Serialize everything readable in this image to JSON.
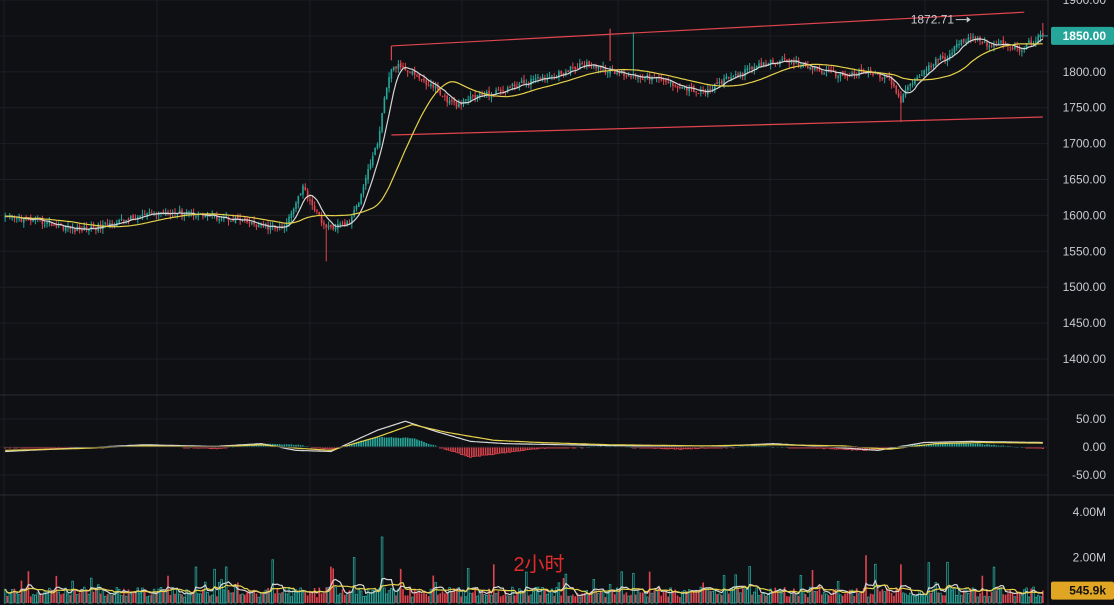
{
  "chart_data": [
    {
      "type": "candlestick",
      "panel": "price",
      "title": "",
      "ylim": [
        1350,
        1900
      ],
      "y_ticks": [
        "1900.00",
        "1850.00",
        "1800.00",
        "1750.00",
        "1700.00",
        "1650.00",
        "1600.00",
        "1550.00",
        "1500.00",
        "1450.00",
        "1400.00"
      ],
      "y_tick_values": [
        1900,
        1850,
        1800,
        1750,
        1700,
        1650,
        1600,
        1550,
        1500,
        1450,
        1400
      ],
      "last_price_tag": "1850.00",
      "last_price": 1850,
      "high_marker_label": "1872.71",
      "high_marker_value": 1872.71,
      "up_color": "#26a69a",
      "down_color": "#e0454f",
      "ma_colors": [
        "#d7d7d7",
        "#e6d24a"
      ],
      "ohlc_anchors": [
        [
          0,
          1596
        ],
        [
          10,
          1594
        ],
        [
          20,
          1588
        ],
        [
          30,
          1580
        ],
        [
          40,
          1584
        ],
        [
          50,
          1592
        ],
        [
          60,
          1600
        ],
        [
          70,
          1605
        ],
        [
          80,
          1603
        ],
        [
          90,
          1598
        ],
        [
          100,
          1594
        ],
        [
          110,
          1584
        ],
        [
          120,
          1582
        ],
        [
          125,
          1620
        ],
        [
          128,
          1640
        ],
        [
          132,
          1615
        ],
        [
          138,
          1582
        ],
        [
          142,
          1585
        ],
        [
          148,
          1590
        ],
        [
          152,
          1620
        ],
        [
          156,
          1665
        ],
        [
          160,
          1700
        ],
        [
          163,
          1760
        ],
        [
          166,
          1805
        ],
        [
          170,
          1808
        ],
        [
          175,
          1800
        ],
        [
          180,
          1785
        ],
        [
          185,
          1778
        ],
        [
          190,
          1760
        ],
        [
          195,
          1752
        ],
        [
          200,
          1765
        ],
        [
          210,
          1770
        ],
        [
          220,
          1782
        ],
        [
          230,
          1790
        ],
        [
          240,
          1800
        ],
        [
          250,
          1812
        ],
        [
          260,
          1800
        ],
        [
          270,
          1795
        ],
        [
          280,
          1790
        ],
        [
          290,
          1780
        ],
        [
          300,
          1770
        ],
        [
          310,
          1790
        ],
        [
          320,
          1803
        ],
        [
          330,
          1815
        ],
        [
          340,
          1812
        ],
        [
          350,
          1802
        ],
        [
          360,
          1795
        ],
        [
          370,
          1800
        ],
        [
          380,
          1790
        ],
        [
          385,
          1758
        ],
        [
          388,
          1780
        ],
        [
          395,
          1800
        ],
        [
          400,
          1815
        ],
        [
          405,
          1822
        ],
        [
          410,
          1840
        ],
        [
          415,
          1850
        ],
        [
          420,
          1842
        ],
        [
          425,
          1836
        ],
        [
          430,
          1840
        ],
        [
          436,
          1828
        ],
        [
          440,
          1840
        ],
        [
          446,
          1850
        ]
      ],
      "channel": {
        "upper": [
          [
            166,
            1836
          ],
          [
            438,
            1883
          ]
        ],
        "lower": [
          [
            166,
            1712
          ],
          [
            446,
            1737
          ]
        ]
      },
      "candle_count": 447
    },
    {
      "type": "macd",
      "panel": "indicator",
      "ylim": [
        -75,
        75
      ],
      "y_ticks": [
        "50.00",
        "0.00",
        "-50.00"
      ],
      "y_tick_values": [
        50,
        0,
        -50
      ],
      "histogram_anchors": [
        [
          0,
          0
        ],
        [
          30,
          -2
        ],
        [
          60,
          4
        ],
        [
          90,
          -3
        ],
        [
          110,
          6
        ],
        [
          125,
          4
        ],
        [
          140,
          -4
        ],
        [
          160,
          18
        ],
        [
          175,
          16
        ],
        [
          185,
          2
        ],
        [
          200,
          -18
        ],
        [
          215,
          -10
        ],
        [
          230,
          -2
        ],
        [
          260,
          2
        ],
        [
          290,
          -4
        ],
        [
          320,
          2
        ],
        [
          350,
          -2
        ],
        [
          370,
          -6
        ],
        [
          390,
          4
        ],
        [
          410,
          8
        ],
        [
          430,
          2
        ],
        [
          446,
          -2
        ]
      ],
      "dif_anchors": [
        [
          0,
          -8
        ],
        [
          30,
          -2
        ],
        [
          60,
          4
        ],
        [
          90,
          1
        ],
        [
          110,
          6
        ],
        [
          125,
          -6
        ],
        [
          140,
          -8
        ],
        [
          160,
          30
        ],
        [
          172,
          46
        ],
        [
          185,
          28
        ],
        [
          200,
          10
        ],
        [
          215,
          6
        ],
        [
          240,
          4
        ],
        [
          270,
          2
        ],
        [
          300,
          0
        ],
        [
          330,
          6
        ],
        [
          355,
          0
        ],
        [
          375,
          -6
        ],
        [
          395,
          8
        ],
        [
          415,
          10
        ],
        [
          446,
          8
        ]
      ],
      "dea_anchors": [
        [
          0,
          -6
        ],
        [
          30,
          -3
        ],
        [
          60,
          2
        ],
        [
          90,
          0
        ],
        [
          110,
          4
        ],
        [
          125,
          -2
        ],
        [
          140,
          -6
        ],
        [
          160,
          18
        ],
        [
          175,
          40
        ],
        [
          190,
          26
        ],
        [
          210,
          12
        ],
        [
          230,
          8
        ],
        [
          260,
          4
        ],
        [
          300,
          2
        ],
        [
          330,
          4
        ],
        [
          360,
          2
        ],
        [
          380,
          -4
        ],
        [
          400,
          6
        ],
        [
          420,
          8
        ],
        [
          446,
          7
        ]
      ]
    },
    {
      "type": "bar",
      "panel": "volume",
      "ylim": [
        0,
        5000000
      ],
      "y_ticks": [
        "4.00M",
        "2.00M"
      ],
      "y_tick_values": [
        4000000,
        2000000
      ],
      "last_volume_tag": "545.9k",
      "last_volume": 545900,
      "spike_anchors": [
        [
          10,
          1.4
        ],
        [
          40,
          0.8
        ],
        [
          70,
          1.2
        ],
        [
          100,
          0.9
        ],
        [
          115,
          1.9
        ],
        [
          140,
          1.6
        ],
        [
          150,
          2.0
        ],
        [
          162,
          2.9
        ],
        [
          170,
          1.5
        ],
        [
          185,
          0.9
        ],
        [
          210,
          1.7
        ],
        [
          240,
          1.1
        ],
        [
          270,
          1.3
        ],
        [
          300,
          0.9
        ],
        [
          320,
          1.6
        ],
        [
          350,
          0.8
        ],
        [
          370,
          2.1
        ],
        [
          385,
          1.7
        ],
        [
          400,
          0.9
        ],
        [
          420,
          1.2
        ],
        [
          446,
          0.55
        ]
      ]
    }
  ],
  "watermark": "2小时"
}
